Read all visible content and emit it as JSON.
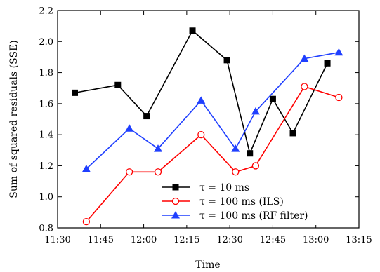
{
  "chart_data": {
    "type": "line",
    "title": "",
    "xlabel": "Time",
    "ylabel": "Sum of squared residuals (SSE)",
    "xlim": [
      "11:30",
      "13:15"
    ],
    "ylim": [
      0.8,
      2.2
    ],
    "xticks": [
      "11:30",
      "11:45",
      "12:00",
      "12:15",
      "12:30",
      "12:45",
      "13:00",
      "13:15"
    ],
    "yticks": [
      "0.8",
      "1.0",
      "1.2",
      "1.4",
      "1.6",
      "1.8",
      "2.0",
      "2.2"
    ],
    "grid": false,
    "legend_position": "bottom-right",
    "series": [
      {
        "name": "τ = 10 ms",
        "color": "#000000",
        "marker": "filled-square",
        "x": [
          "11:36",
          "11:51",
          "12:01",
          "12:17",
          "12:29",
          "12:37",
          "12:45",
          "12:52",
          "13:04"
        ],
        "y": [
          1.67,
          1.72,
          1.52,
          2.07,
          1.88,
          1.28,
          1.63,
          1.41,
          1.86
        ]
      },
      {
        "name": "τ = 100 ms (ILS)",
        "color": "#ff0000",
        "marker": "open-circle",
        "x": [
          "11:40",
          "11:55",
          "12:05",
          "12:20",
          "12:32",
          "12:39",
          "12:56",
          "13:08"
        ],
        "y": [
          0.84,
          1.16,
          1.16,
          1.4,
          1.16,
          1.2,
          1.71,
          1.64
        ]
      },
      {
        "name": "τ = 100 ms (RF filter)",
        "color": "#1f3fff",
        "marker": "filled-triangle",
        "x": [
          "11:40",
          "11:55",
          "12:05",
          "12:20",
          "12:32",
          "12:39",
          "12:56",
          "13:08"
        ],
        "y": [
          1.18,
          1.44,
          1.31,
          1.62,
          1.31,
          1.55,
          1.89,
          1.93
        ]
      }
    ]
  }
}
